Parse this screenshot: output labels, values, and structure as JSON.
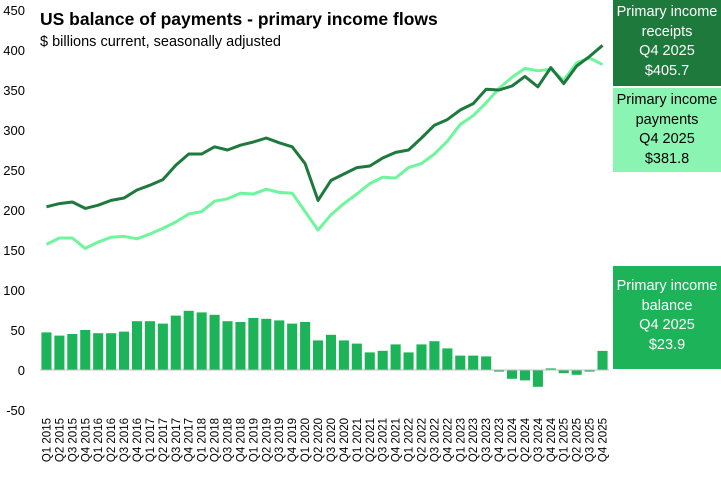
{
  "title": "US balance of payments - primary income flows",
  "subtitle": "$ billions current, seasonally adjusted",
  "callouts": {
    "receipts": {
      "line1": "Primary income",
      "line2": "receipts",
      "period": "Q4 2025",
      "value": "$405.7",
      "color": "#1e7a3c",
      "text_color": "#ffffff"
    },
    "payments": {
      "line1": "Primary income",
      "line2": "payments",
      "period": "Q4 2025",
      "value": "$381.8",
      "color": "#8af5b2",
      "text_color": "#000000"
    },
    "balance": {
      "line1": "Primary income",
      "line2": "balance",
      "period": "Q4 2025",
      "value": "$23.9",
      "color": "#1db358",
      "text_color": "#ffffff"
    }
  },
  "chart_data": {
    "type": "line+bar",
    "ylim": [
      -50,
      450
    ],
    "yticks": [
      -50,
      0,
      50,
      100,
      150,
      200,
      250,
      300,
      350,
      400,
      450
    ],
    "grid": false,
    "categories": [
      "Q1 2015",
      "Q2 2015",
      "Q3 2015",
      "Q4 2015",
      "Q1 2016",
      "Q2 2016",
      "Q3 2016",
      "Q4 2016",
      "Q1 2017",
      "Q2 2017",
      "Q3 2017",
      "Q4 2017",
      "Q1 2018",
      "Q2 2018",
      "Q3 2018",
      "Q4 2018",
      "Q1 2019",
      "Q2 2019",
      "Q3 2019",
      "Q4 2019",
      "Q1 2020",
      "Q2 2020",
      "Q3 2020",
      "Q4 2020",
      "Q1 2021",
      "Q2 2021",
      "Q3 2021",
      "Q4 2021",
      "Q1 2022",
      "Q2 2022",
      "Q3 2022",
      "Q4 2022",
      "Q1 2023",
      "Q2 2023",
      "Q3 2023",
      "Q4 2023",
      "Q1 2024",
      "Q2 2024",
      "Q3 2024",
      "Q4 2024",
      "Q1 2025",
      "Q2 2025",
      "Q3 2025",
      "Q4 2025"
    ],
    "series": [
      {
        "name": "Primary income receipts",
        "type": "line",
        "color": "#1e7a3c",
        "values": [
          204,
          208,
          210,
          202,
          206,
          212,
          215,
          225,
          231,
          238,
          256,
          270,
          270,
          279,
          275,
          281,
          285,
          290,
          284,
          279,
          258,
          212,
          237,
          245,
          253,
          255,
          265,
          272,
          275,
          290,
          306,
          313,
          325,
          333,
          351,
          350,
          355,
          367,
          354,
          378,
          358,
          380,
          392,
          405.7
        ]
      },
      {
        "name": "Primary income payments",
        "type": "line",
        "color": "#6ff59d",
        "values": [
          157,
          165,
          165,
          152,
          160,
          166,
          167,
          164,
          170,
          177,
          185,
          195,
          198,
          211,
          214,
          221,
          220,
          226,
          222,
          221,
          198,
          175,
          194,
          208,
          220,
          233,
          241,
          240,
          253,
          258,
          270,
          286,
          307,
          318,
          334,
          352,
          366,
          377,
          374,
          376,
          362,
          384,
          390,
          381.8
        ]
      },
      {
        "name": "Primary income balance",
        "type": "bar",
        "color": "#1db358",
        "values": [
          47,
          43,
          45,
          50,
          46,
          46,
          48,
          61,
          61,
          58,
          68,
          74,
          72,
          69,
          61,
          60,
          65,
          64,
          62,
          58,
          60,
          37,
          44,
          37,
          33,
          22,
          24,
          32,
          22,
          32,
          36,
          27,
          18,
          18,
          17,
          -2,
          -11,
          -13,
          -21,
          2,
          -4,
          -6,
          -2,
          23.9
        ]
      }
    ]
  }
}
